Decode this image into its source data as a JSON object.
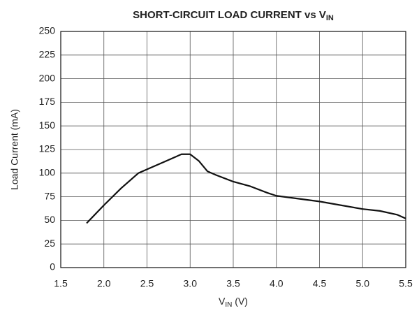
{
  "chart_data": {
    "type": "line",
    "title": {
      "text": "SHORT-CIRCUIT LOAD CURRENT vs V",
      "sub": "IN"
    },
    "x_label": {
      "text": "V",
      "sub": "IN",
      "unit": " (V)"
    },
    "y_label": "Load Current (mA)",
    "x": [
      1.8,
      2.0,
      2.2,
      2.4,
      2.5,
      2.7,
      2.9,
      3.0,
      3.1,
      3.2,
      3.3,
      3.5,
      3.7,
      3.9,
      4.0,
      4.5,
      5.0,
      5.2,
      5.4,
      5.5
    ],
    "series": [
      {
        "name": "Load Current",
        "color": "#111111",
        "values": [
          47,
          66,
          84,
          100,
          104,
          112,
          120,
          120,
          113,
          102,
          98,
          91,
          86,
          79,
          76,
          70,
          62,
          60,
          56,
          52
        ]
      }
    ],
    "xlim": [
      1.5,
      5.5
    ],
    "xticks": [
      1.5,
      {
        "value": 2,
        "label": "2.0"
      },
      2.5,
      {
        "value": 3,
        "label": "3.0"
      },
      3.5,
      {
        "value": 4,
        "label": "4.0"
      },
      4.5,
      {
        "value": 5,
        "label": "5.0"
      },
      5.5
    ],
    "ylim": [
      0,
      250
    ],
    "yticks": [
      0,
      25,
      50,
      75,
      100,
      125,
      150,
      175,
      200,
      225,
      250
    ],
    "grid": true
  }
}
